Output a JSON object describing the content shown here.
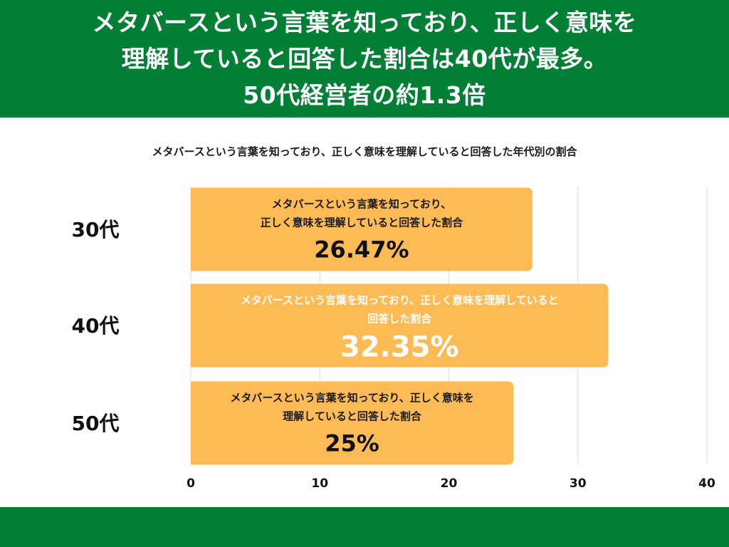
{
  "header": {
    "lines": [
      "メタバースという言葉を知っており、正しく意味を",
      "理解していると回答した割合は40代が最多。",
      "50代経営者の約1.3倍"
    ]
  },
  "colors": {
    "brand_green": "#007f35",
    "bar": "#fcbb55"
  },
  "chart_data": {
    "type": "bar",
    "orientation": "horizontal",
    "title": "メタバースという言葉を知っており、正しく意味を理解していると回答した年代別の割合",
    "categories": [
      "30代",
      "40代",
      "50代"
    ],
    "values": [
      26.47,
      32.35,
      25
    ],
    "value_labels": [
      "26.47%",
      "32.35%",
      "25%"
    ],
    "bar_descriptions": [
      [
        "メタバースという言葉を知っており、",
        "正しく意味を理解していると回答した割合"
      ],
      [
        "メタバースという言葉を知っており、正しく意味を理解していると",
        "回答した割合"
      ],
      [
        "メタバースという言葉を知っており、正しく意味を",
        "理解していると回答した割合"
      ]
    ],
    "xlim": [
      0,
      40
    ],
    "xticks": [
      0,
      10,
      20,
      30,
      40
    ],
    "grid": true,
    "legend": "none"
  }
}
